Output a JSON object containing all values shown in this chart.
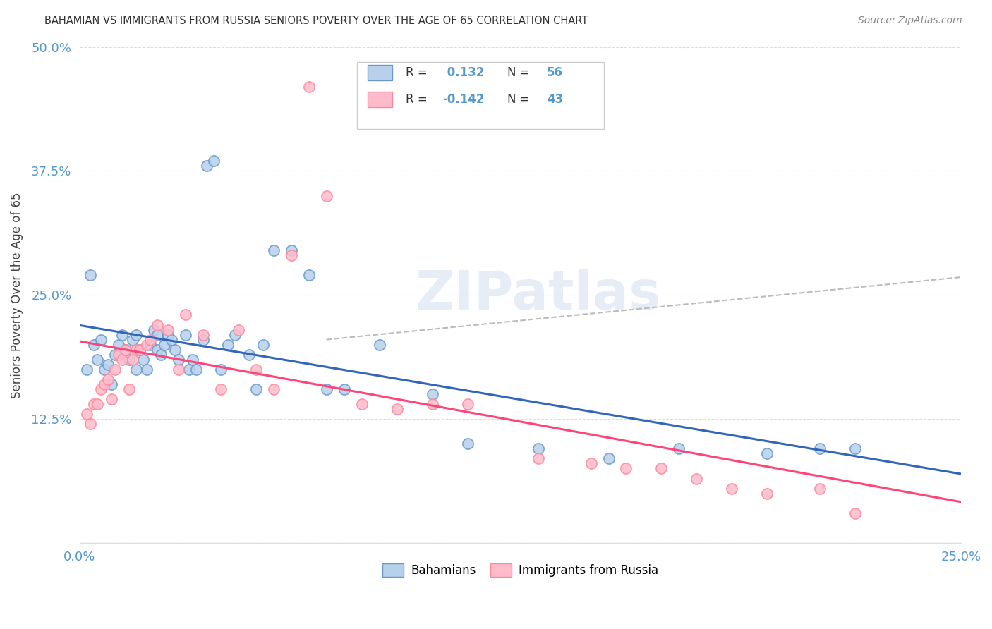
{
  "title": "BAHAMIAN VS IMMIGRANTS FROM RUSSIA SENIORS POVERTY OVER THE AGE OF 65 CORRELATION CHART",
  "source": "Source: ZipAtlas.com",
  "ylabel": "Seniors Poverty Over the Age of 65",
  "xlim": [
    0.0,
    0.25
  ],
  "ylim": [
    0.0,
    0.5
  ],
  "r_bahamian": 0.132,
  "n_bahamian": 56,
  "r_russia": -0.142,
  "n_russia": 43,
  "color_bahamian_face": "#B8D0EC",
  "color_bahamian_edge": "#6699CC",
  "color_bahamian_line": "#3366BB",
  "color_russia_face": "#FFBBCC",
  "color_russia_edge": "#FF8899",
  "color_russia_line": "#FF4477",
  "color_dashed": "#BBBBBB",
  "color_tick": "#5599CC",
  "color_grid": "#DDDDDD",
  "bahamian_x": [
    0.002,
    0.003,
    0.004,
    0.005,
    0.006,
    0.007,
    0.008,
    0.009,
    0.01,
    0.011,
    0.012,
    0.013,
    0.014,
    0.015,
    0.016,
    0.016,
    0.017,
    0.018,
    0.019,
    0.02,
    0.021,
    0.022,
    0.022,
    0.023,
    0.024,
    0.025,
    0.026,
    0.027,
    0.028,
    0.03,
    0.031,
    0.032,
    0.033,
    0.035,
    0.036,
    0.038,
    0.04,
    0.042,
    0.044,
    0.048,
    0.05,
    0.052,
    0.055,
    0.06,
    0.065,
    0.07,
    0.075,
    0.085,
    0.1,
    0.11,
    0.13,
    0.15,
    0.17,
    0.195,
    0.21,
    0.22
  ],
  "bahamian_y": [
    0.175,
    0.27,
    0.2,
    0.185,
    0.205,
    0.175,
    0.18,
    0.16,
    0.19,
    0.2,
    0.21,
    0.195,
    0.185,
    0.205,
    0.21,
    0.175,
    0.195,
    0.185,
    0.175,
    0.2,
    0.215,
    0.21,
    0.195,
    0.19,
    0.2,
    0.21,
    0.205,
    0.195,
    0.185,
    0.21,
    0.175,
    0.185,
    0.175,
    0.205,
    0.38,
    0.385,
    0.175,
    0.2,
    0.21,
    0.19,
    0.155,
    0.2,
    0.295,
    0.295,
    0.27,
    0.155,
    0.155,
    0.2,
    0.15,
    0.1,
    0.095,
    0.085,
    0.095,
    0.09,
    0.095,
    0.095
  ],
  "russia_x": [
    0.002,
    0.003,
    0.004,
    0.005,
    0.006,
    0.007,
    0.008,
    0.009,
    0.01,
    0.011,
    0.012,
    0.013,
    0.014,
    0.015,
    0.016,
    0.017,
    0.019,
    0.02,
    0.022,
    0.025,
    0.028,
    0.03,
    0.035,
    0.04,
    0.045,
    0.05,
    0.055,
    0.06,
    0.065,
    0.07,
    0.08,
    0.09,
    0.1,
    0.11,
    0.13,
    0.145,
    0.155,
    0.165,
    0.175,
    0.185,
    0.195,
    0.21,
    0.22
  ],
  "russia_y": [
    0.13,
    0.12,
    0.14,
    0.14,
    0.155,
    0.16,
    0.165,
    0.145,
    0.175,
    0.19,
    0.185,
    0.195,
    0.155,
    0.185,
    0.195,
    0.195,
    0.2,
    0.205,
    0.22,
    0.215,
    0.175,
    0.23,
    0.21,
    0.155,
    0.215,
    0.175,
    0.155,
    0.29,
    0.46,
    0.35,
    0.14,
    0.135,
    0.14,
    0.14,
    0.085,
    0.08,
    0.075,
    0.075,
    0.065,
    0.055,
    0.05,
    0.055,
    0.03
  ]
}
